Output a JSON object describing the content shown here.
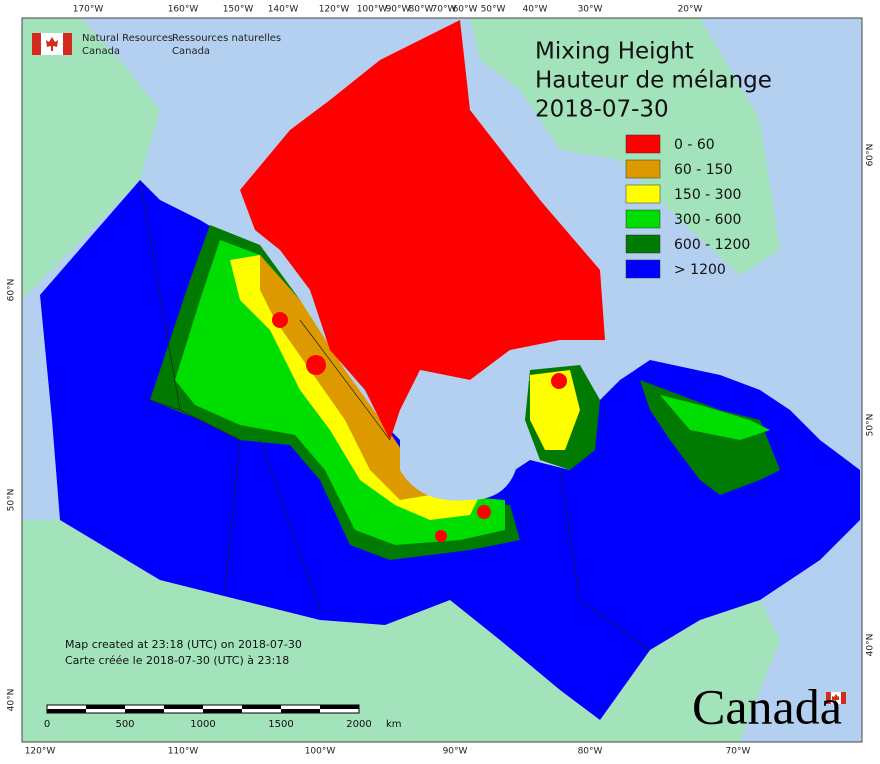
{
  "header": {
    "department_en": [
      "Natural Resources",
      "Canada"
    ],
    "department_fr": [
      "Ressources naturelles",
      "Canada"
    ]
  },
  "title": [
    "Mixing Height",
    "Hauteur de mélange",
    "2018-07-30"
  ],
  "legend": [
    {
      "label": "0 - 60",
      "color": "#ff0000"
    },
    {
      "label": "60 - 150",
      "color": "#dd9a00"
    },
    {
      "label": "150 - 300",
      "color": "#ffff00"
    },
    {
      "label": "300 - 600",
      "color": "#00dd00"
    },
    {
      "label": "600 - 1200",
      "color": "#007a00"
    },
    {
      "label": "> 1200",
      "color": "#0000ff"
    }
  ],
  "graticule": {
    "top": [
      "170°W",
      "160°W",
      "150°W",
      "140°W",
      "120°W",
      "100°W",
      "90°W",
      "80°W",
      "70°W",
      "60°W",
      "50°W",
      "40°W",
      "30°W",
      "20°W"
    ],
    "bottom": [
      "120°W",
      "110°W",
      "100°W",
      "90°W",
      "80°W",
      "70°W"
    ],
    "left": [
      "60°N",
      "50°N",
      "40°N"
    ],
    "right": [
      "60°N",
      "50°N",
      "40°N"
    ]
  },
  "footer": [
    "Map created at 23:18 (UTC) on 2018-07-30",
    "Carte créée le 2018-07-30 (UTC) à 23:18"
  ],
  "scale_bar": {
    "labels": [
      "0",
      "500",
      "1000",
      "1500",
      "2000"
    ],
    "unit": "km"
  },
  "wordmark": "Canada"
}
